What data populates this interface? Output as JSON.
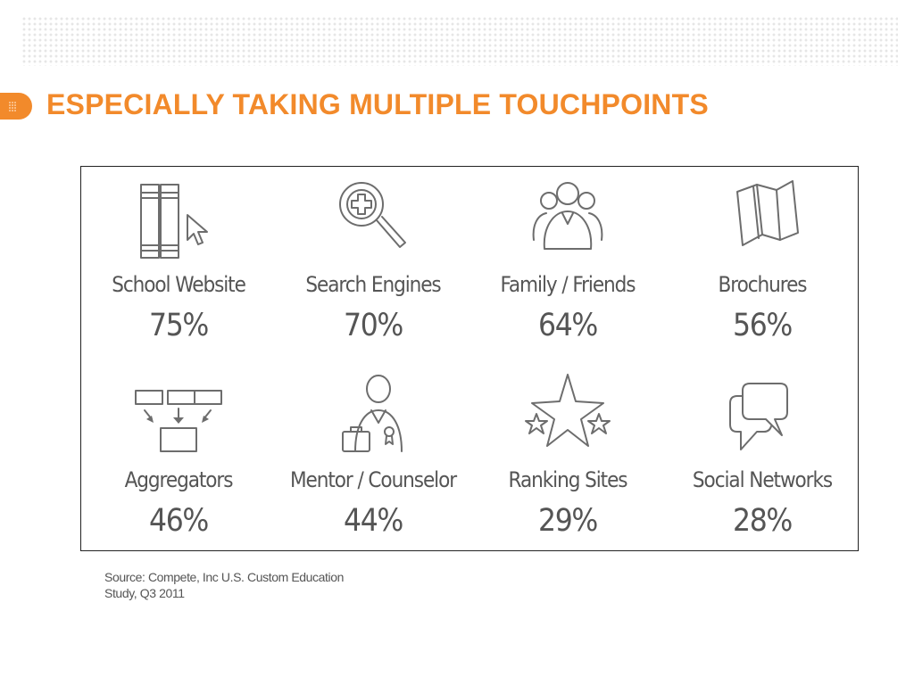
{
  "slide": {
    "title": "ESPECIALLY TAKING MULTIPLE TOUCHPOINTS",
    "source": "Source: Compete, Inc U.S. Custom Education Study, Q3 2011",
    "accent_color": "#f28a2b"
  },
  "touchpoints": [
    {
      "label": "School Website",
      "value": "75%",
      "icon": "books-cursor-icon"
    },
    {
      "label": "Search Engines",
      "value": "70%",
      "icon": "magnifier-plus-icon"
    },
    {
      "label": "Family / Friends",
      "value": "64%",
      "icon": "people-group-icon"
    },
    {
      "label": "Brochures",
      "value": "56%",
      "icon": "folded-brochure-icon"
    },
    {
      "label": "Aggregators",
      "value": "46%",
      "icon": "boxes-merge-icon"
    },
    {
      "label": "Mentor / Counselor",
      "value": "44%",
      "icon": "mentor-briefcase-icon"
    },
    {
      "label": "Ranking Sites",
      "value": "29%",
      "icon": "stars-icon"
    },
    {
      "label": "Social Networks",
      "value": "28%",
      "icon": "speech-bubbles-icon"
    }
  ]
}
